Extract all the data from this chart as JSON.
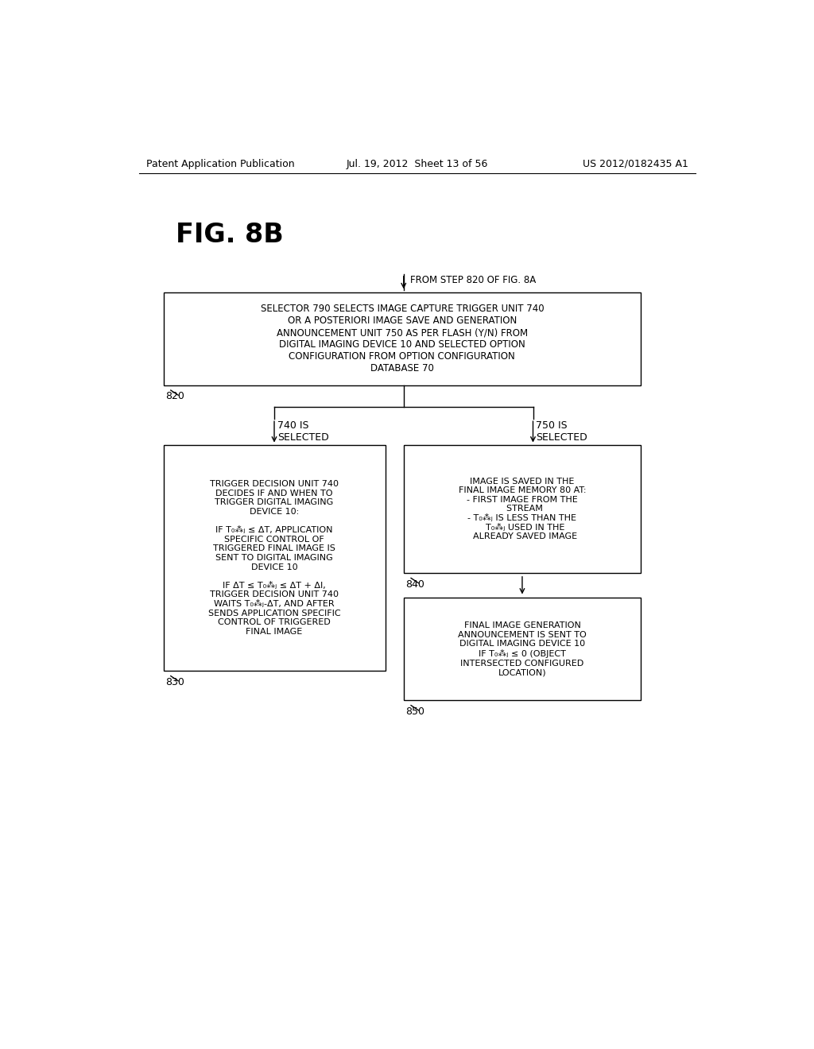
{
  "header_left": "Patent Application Publication",
  "header_middle": "Jul. 19, 2012  Sheet 13 of 56",
  "header_right": "US 2012/0182435 A1",
  "fig_label": "FIG. 8B",
  "from_step_label": "FROM STEP 820 OF FIG. 8A",
  "label_820": "820",
  "label_740_is": "740 IS\nSELECTED",
  "label_750_is": "750 IS\nSELECTED",
  "label_840": "840",
  "label_830": "830",
  "label_850": "850",
  "bg_color": "#ffffff",
  "text_color": "#000000"
}
